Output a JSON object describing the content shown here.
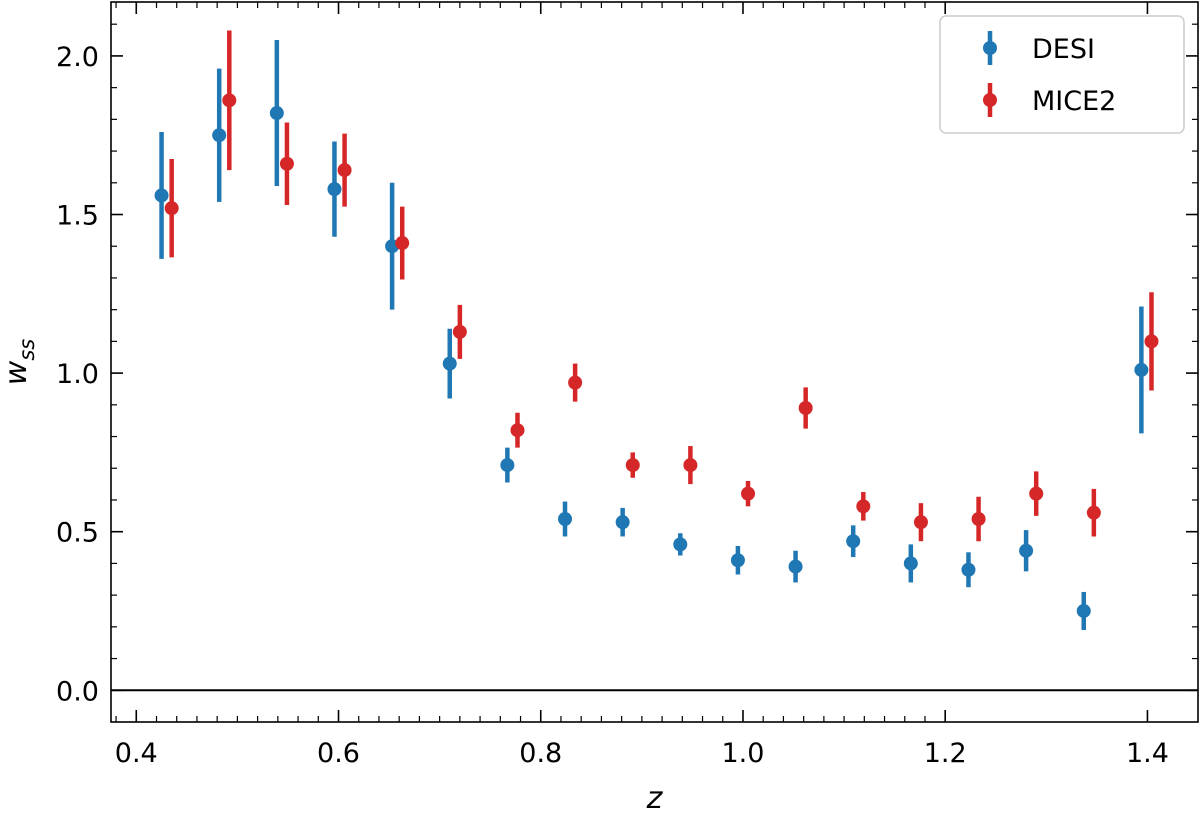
{
  "chart_data": {
    "type": "scatter",
    "xlabel": "z",
    "ylabel_main": "w",
    "ylabel_sub": "ss",
    "xlim": [
      0.375,
      1.45
    ],
    "ylim": [
      -0.1,
      2.17
    ],
    "xticks": [
      "0.4",
      "0.6",
      "0.8",
      "1.0",
      "1.2",
      "1.4"
    ],
    "xtick_values": [
      0.4,
      0.6,
      0.8,
      1.0,
      1.2,
      1.4
    ],
    "yticks": [
      "0.0",
      "0.5",
      "1.0",
      "1.5",
      "2.0"
    ],
    "ytick_values": [
      0.0,
      0.5,
      1.0,
      1.5,
      2.0
    ],
    "hline": 0.0,
    "legend_placement": "top-right",
    "series": [
      {
        "name": "DESI",
        "color": "#1f77b4",
        "points": [
          {
            "x": 0.425,
            "y": 1.56,
            "err": 0.2
          },
          {
            "x": 0.482,
            "y": 1.75,
            "err": 0.21
          },
          {
            "x": 0.539,
            "y": 1.82,
            "err": 0.23
          },
          {
            "x": 0.596,
            "y": 1.58,
            "err": 0.15
          },
          {
            "x": 0.653,
            "y": 1.4,
            "err": 0.2
          },
          {
            "x": 0.71,
            "y": 1.03,
            "err": 0.11
          },
          {
            "x": 0.767,
            "y": 0.71,
            "err": 0.055
          },
          {
            "x": 0.824,
            "y": 0.54,
            "err": 0.055
          },
          {
            "x": 0.881,
            "y": 0.53,
            "err": 0.045
          },
          {
            "x": 0.938,
            "y": 0.46,
            "err": 0.035
          },
          {
            "x": 0.995,
            "y": 0.41,
            "err": 0.045
          },
          {
            "x": 1.052,
            "y": 0.39,
            "err": 0.05
          },
          {
            "x": 1.109,
            "y": 0.47,
            "err": 0.05
          },
          {
            "x": 1.166,
            "y": 0.4,
            "err": 0.06
          },
          {
            "x": 1.223,
            "y": 0.38,
            "err": 0.055
          },
          {
            "x": 1.28,
            "y": 0.44,
            "err": 0.065
          },
          {
            "x": 1.337,
            "y": 0.25,
            "err": 0.06
          },
          {
            "x": 1.394,
            "y": 1.01,
            "err": 0.2
          }
        ]
      },
      {
        "name": "MICE2",
        "color": "#d62728",
        "points": [
          {
            "x": 0.435,
            "y": 1.52,
            "err": 0.155
          },
          {
            "x": 0.492,
            "y": 1.86,
            "err": 0.22
          },
          {
            "x": 0.549,
            "y": 1.66,
            "err": 0.13
          },
          {
            "x": 0.606,
            "y": 1.64,
            "err": 0.115
          },
          {
            "x": 0.663,
            "y": 1.41,
            "err": 0.115
          },
          {
            "x": 0.72,
            "y": 1.13,
            "err": 0.085
          },
          {
            "x": 0.777,
            "y": 0.82,
            "err": 0.055
          },
          {
            "x": 0.834,
            "y": 0.97,
            "err": 0.06
          },
          {
            "x": 0.891,
            "y": 0.71,
            "err": 0.04
          },
          {
            "x": 0.948,
            "y": 0.71,
            "err": 0.06
          },
          {
            "x": 1.005,
            "y": 0.62,
            "err": 0.04
          },
          {
            "x": 1.062,
            "y": 0.89,
            "err": 0.065
          },
          {
            "x": 1.119,
            "y": 0.58,
            "err": 0.045
          },
          {
            "x": 1.176,
            "y": 0.53,
            "err": 0.06
          },
          {
            "x": 1.233,
            "y": 0.54,
            "err": 0.07
          },
          {
            "x": 1.29,
            "y": 0.62,
            "err": 0.07
          },
          {
            "x": 1.347,
            "y": 0.56,
            "err": 0.075
          },
          {
            "x": 1.404,
            "y": 1.1,
            "err": 0.155
          }
        ]
      }
    ]
  }
}
